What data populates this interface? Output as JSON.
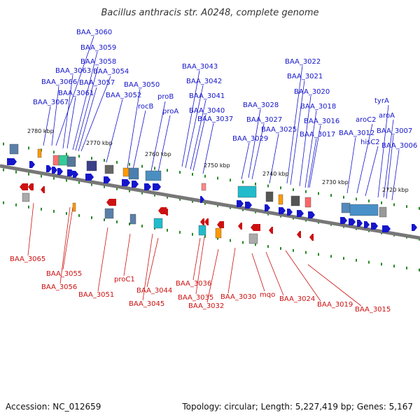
{
  "title": "Bacillus anthracis str. A0248, complete genome",
  "footer": {
    "accession": "Accession: NC_012659",
    "topology": "Topology: circular; Length: 5,227,419 bp; Genes: 5,167"
  },
  "colors": {
    "plus_strand": "#1515cc",
    "minus_strand": "#cc1111",
    "backbone": "#777777",
    "tick": "#2a8a2a"
  },
  "kbp_labels": [
    "2780 kbp",
    "2770 kbp",
    "2760 kbp",
    "2750 kbp",
    "2740 kbp",
    "2730 kbp",
    "2720 kbp"
  ],
  "plus_genes": [
    "BAA_3060",
    "BAA_3059",
    "BAA_3058",
    "BAA_3063",
    "BAA_3054",
    "BAA_3066",
    "BAA_3057",
    "BAA_3061",
    "BAA_3067",
    "BAA_3050",
    "BAA_3052",
    "rocB",
    "proB",
    "proA",
    "BAA_3043",
    "BAA_3042",
    "BAA_3041",
    "BAA_3040",
    "BAA_3037",
    "BAA_3028",
    "BAA_3027",
    "BAA_3029",
    "BAA_3025",
    "BAA_3022",
    "BAA_3021",
    "BAA_3020",
    "BAA_3018",
    "BAA_3016",
    "BAA_3017",
    "tyrA",
    "aroC2",
    "aroA",
    "BAA_3012",
    "BAA_3007",
    "hisC2",
    "BAA_3006"
  ],
  "minus_genes": [
    "BAA_3065",
    "BAA_3055",
    "BAA_3056",
    "BAA_3051",
    "proC1",
    "BAA_3044",
    "BAA_3045",
    "BAA_3036",
    "BAA_3035",
    "BAA_3032",
    "BAA_3030",
    "mqo",
    "BAA_3024",
    "BAA_3019",
    "BAA_3015"
  ]
}
